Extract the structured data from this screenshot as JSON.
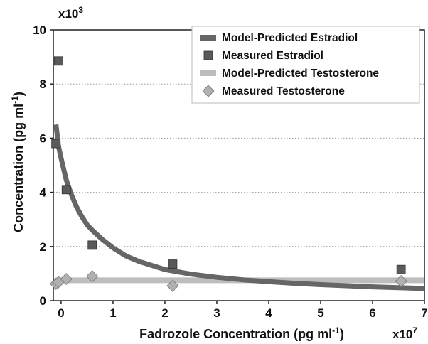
{
  "chart_data": {
    "type": "scatter",
    "title": "",
    "xlabel": "Fadrozole Concentration (pg ml",
    "xlabel_sup": "-1",
    "xlabel_close": ")",
    "ylabel": "Concentration (pg ml",
    "ylabel_sup": "-1",
    "ylabel_close": ")",
    "x_multiplier": "x10",
    "x_multiplier_sup": "7",
    "y_multiplier": "x10",
    "y_multiplier_sup": "3",
    "x_scale": 10000000,
    "y_scale": 1000,
    "xlim": [
      -0.15,
      7
    ],
    "ylim": [
      0,
      10
    ],
    "x_ticks": [
      0,
      1,
      2,
      3,
      4,
      5,
      6,
      7
    ],
    "y_ticks": [
      0,
      2,
      4,
      6,
      8,
      10
    ],
    "grid": "horizontal dotted",
    "legend_position": "top-right",
    "series": [
      {
        "name": "Model-Predicted Estradiol",
        "kind": "line",
        "color": "#666666",
        "x": [
          -0.1,
          -0.05,
          0,
          0.05,
          0.1,
          0.2,
          0.3,
          0.4,
          0.5,
          0.6,
          0.8,
          1.0,
          1.25,
          1.5,
          2.0,
          2.5,
          3.0,
          3.5,
          4.0,
          4.5,
          5.0,
          5.5,
          6.0,
          6.5,
          7.0
        ],
        "y": [
          6.5,
          5.7,
          5.25,
          4.85,
          4.45,
          3.9,
          3.45,
          3.1,
          2.8,
          2.6,
          2.25,
          1.95,
          1.65,
          1.45,
          1.15,
          0.98,
          0.86,
          0.77,
          0.7,
          0.64,
          0.59,
          0.55,
          0.51,
          0.48,
          0.45
        ]
      },
      {
        "name": "Measured Estradiol",
        "kind": "square",
        "color": "#5a5a5a",
        "x": [
          -0.1,
          -0.05,
          0.1,
          0.6,
          2.15,
          6.55
        ],
        "y": [
          5.8,
          8.85,
          4.1,
          2.05,
          1.35,
          1.15
        ]
      },
      {
        "name": "Model-Predicted Testosterone",
        "kind": "line",
        "color": "#bdbdbd",
        "x": [
          -0.1,
          7.0
        ],
        "y": [
          0.75,
          0.75
        ]
      },
      {
        "name": "Measured Testosterone",
        "kind": "diamond",
        "color": "#b0b0b0",
        "x": [
          -0.1,
          -0.05,
          0.1,
          0.6,
          2.15,
          6.55
        ],
        "y": [
          0.62,
          0.68,
          0.8,
          0.9,
          0.55,
          0.72
        ]
      }
    ]
  }
}
